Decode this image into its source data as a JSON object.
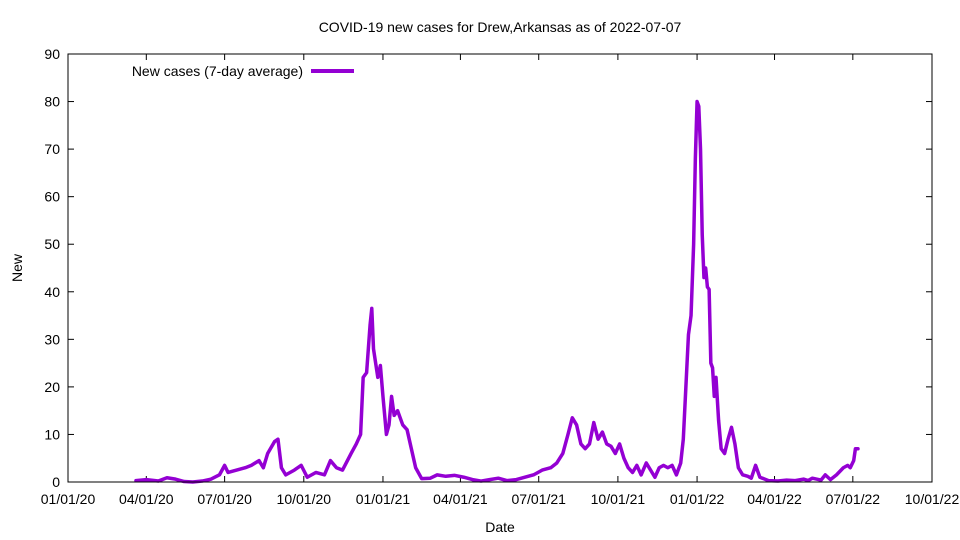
{
  "chart_data": {
    "type": "line",
    "title": "COVID-19 new cases for Drew,Arkansas as of 2022-07-07",
    "xlabel": "Date",
    "ylabel": "New",
    "xlim": [
      "2020-01-01",
      "2022-10-01"
    ],
    "ylim": [
      0,
      90
    ],
    "y_ticks": [
      0,
      10,
      20,
      30,
      40,
      50,
      60,
      70,
      80,
      90
    ],
    "x_ticks": [
      {
        "date": "2020-01-01",
        "label": "01/01/20"
      },
      {
        "date": "2020-04-01",
        "label": "04/01/20"
      },
      {
        "date": "2020-07-01",
        "label": "07/01/20"
      },
      {
        "date": "2020-10-01",
        "label": "10/01/20"
      },
      {
        "date": "2021-01-01",
        "label": "01/01/21"
      },
      {
        "date": "2021-04-01",
        "label": "04/01/21"
      },
      {
        "date": "2021-07-01",
        "label": "07/01/21"
      },
      {
        "date": "2021-10-01",
        "label": "10/01/21"
      },
      {
        "date": "2022-01-01",
        "label": "01/01/22"
      },
      {
        "date": "2022-04-01",
        "label": "04/01/22"
      },
      {
        "date": "2022-07-01",
        "label": "07/01/22"
      },
      {
        "date": "2022-10-01",
        "label": "10/01/22"
      }
    ],
    "grid": false,
    "legend_position": "top-left",
    "series": [
      {
        "name": "New cases (7-day average)",
        "color": "#9400d3",
        "points": [
          [
            "2020-03-20",
            0.3
          ],
          [
            "2020-04-01",
            0.5
          ],
          [
            "2020-04-15",
            0.2
          ],
          [
            "2020-04-25",
            0.9
          ],
          [
            "2020-05-05",
            0.6
          ],
          [
            "2020-05-15",
            0.1
          ],
          [
            "2020-05-25",
            0.0
          ],
          [
            "2020-06-05",
            0.2
          ],
          [
            "2020-06-15",
            0.6
          ],
          [
            "2020-06-25",
            1.5
          ],
          [
            "2020-07-01",
            3.5
          ],
          [
            "2020-07-05",
            2.0
          ],
          [
            "2020-07-15",
            2.5
          ],
          [
            "2020-07-25",
            3.0
          ],
          [
            "2020-08-01",
            3.5
          ],
          [
            "2020-08-10",
            4.5
          ],
          [
            "2020-08-15",
            3.0
          ],
          [
            "2020-08-20",
            6.0
          ],
          [
            "2020-08-28",
            8.5
          ],
          [
            "2020-09-01",
            9.0
          ],
          [
            "2020-09-05",
            3.0
          ],
          [
            "2020-09-10",
            1.5
          ],
          [
            "2020-09-20",
            2.5
          ],
          [
            "2020-09-28",
            3.5
          ],
          [
            "2020-10-05",
            1.0
          ],
          [
            "2020-10-15",
            2.0
          ],
          [
            "2020-10-25",
            1.5
          ],
          [
            "2020-11-01",
            4.5
          ],
          [
            "2020-11-08",
            3.0
          ],
          [
            "2020-11-15",
            2.5
          ],
          [
            "2020-11-25",
            6.0
          ],
          [
            "2020-12-01",
            8.0
          ],
          [
            "2020-12-06",
            10.0
          ],
          [
            "2020-12-09",
            22.0
          ],
          [
            "2020-12-13",
            23.0
          ],
          [
            "2020-12-17",
            33.0
          ],
          [
            "2020-12-19",
            36.5
          ],
          [
            "2020-12-21",
            28.0
          ],
          [
            "2020-12-26",
            22.0
          ],
          [
            "2020-12-29",
            24.5
          ],
          [
            "2021-01-01",
            18.0
          ],
          [
            "2021-01-05",
            10.0
          ],
          [
            "2021-01-08",
            12.0
          ],
          [
            "2021-01-11",
            18.0
          ],
          [
            "2021-01-14",
            14.0
          ],
          [
            "2021-01-18",
            15.0
          ],
          [
            "2021-01-24",
            12.0
          ],
          [
            "2021-01-29",
            11.0
          ],
          [
            "2021-02-03",
            7.0
          ],
          [
            "2021-02-08",
            3.0
          ],
          [
            "2021-02-15",
            0.7
          ],
          [
            "2021-02-25",
            0.8
          ],
          [
            "2021-03-05",
            1.5
          ],
          [
            "2021-03-15",
            1.2
          ],
          [
            "2021-03-25",
            1.4
          ],
          [
            "2021-04-05",
            1.0
          ],
          [
            "2021-04-15",
            0.5
          ],
          [
            "2021-04-25",
            0.2
          ],
          [
            "2021-05-05",
            0.5
          ],
          [
            "2021-05-15",
            0.8
          ],
          [
            "2021-05-25",
            0.3
          ],
          [
            "2021-06-05",
            0.5
          ],
          [
            "2021-06-15",
            1.0
          ],
          [
            "2021-06-25",
            1.5
          ],
          [
            "2021-07-05",
            2.5
          ],
          [
            "2021-07-15",
            3.0
          ],
          [
            "2021-07-22",
            4.0
          ],
          [
            "2021-07-29",
            6.0
          ],
          [
            "2021-08-04",
            10.0
          ],
          [
            "2021-08-09",
            13.5
          ],
          [
            "2021-08-14",
            12.0
          ],
          [
            "2021-08-19",
            8.0
          ],
          [
            "2021-08-24",
            7.0
          ],
          [
            "2021-08-29",
            8.0
          ],
          [
            "2021-09-03",
            12.5
          ],
          [
            "2021-09-08",
            9.0
          ],
          [
            "2021-09-13",
            10.5
          ],
          [
            "2021-09-18",
            8.0
          ],
          [
            "2021-09-23",
            7.5
          ],
          [
            "2021-09-28",
            6.0
          ],
          [
            "2021-10-03",
            8.0
          ],
          [
            "2021-10-08",
            5.0
          ],
          [
            "2021-10-13",
            3.0
          ],
          [
            "2021-10-18",
            2.0
          ],
          [
            "2021-10-23",
            3.5
          ],
          [
            "2021-10-28",
            1.5
          ],
          [
            "2021-11-03",
            4.0
          ],
          [
            "2021-11-08",
            2.5
          ],
          [
            "2021-11-13",
            1.0
          ],
          [
            "2021-11-18",
            3.0
          ],
          [
            "2021-11-23",
            3.5
          ],
          [
            "2021-11-28",
            3.0
          ],
          [
            "2021-12-03",
            3.5
          ],
          [
            "2021-12-08",
            1.5
          ],
          [
            "2021-12-13",
            4.0
          ],
          [
            "2021-12-16",
            9.0
          ],
          [
            "2021-12-19",
            20.0
          ],
          [
            "2021-12-22",
            31.0
          ],
          [
            "2021-12-25",
            35.0
          ],
          [
            "2021-12-28",
            50.0
          ],
          [
            "2021-12-30",
            68.0
          ],
          [
            "2022-01-01",
            80.0
          ],
          [
            "2022-01-03",
            79.0
          ],
          [
            "2022-01-05",
            70.0
          ],
          [
            "2022-01-07",
            52.0
          ],
          [
            "2022-01-09",
            43.0
          ],
          [
            "2022-01-11",
            45.0
          ],
          [
            "2022-01-13",
            41.0
          ],
          [
            "2022-01-15",
            40.5
          ],
          [
            "2022-01-17",
            25.0
          ],
          [
            "2022-01-19",
            24.0
          ],
          [
            "2022-01-21",
            18.0
          ],
          [
            "2022-01-23",
            22.0
          ],
          [
            "2022-01-26",
            13.0
          ],
          [
            "2022-01-29",
            7.0
          ],
          [
            "2022-02-02",
            6.0
          ],
          [
            "2022-02-06",
            9.0
          ],
          [
            "2022-02-10",
            11.5
          ],
          [
            "2022-02-14",
            8.0
          ],
          [
            "2022-02-18",
            3.0
          ],
          [
            "2022-02-23",
            1.5
          ],
          [
            "2022-03-01",
            1.2
          ],
          [
            "2022-03-05",
            0.8
          ],
          [
            "2022-03-10",
            3.5
          ],
          [
            "2022-03-15",
            1.0
          ],
          [
            "2022-03-25",
            0.3
          ],
          [
            "2022-04-05",
            0.2
          ],
          [
            "2022-04-15",
            0.4
          ],
          [
            "2022-04-25",
            0.3
          ],
          [
            "2022-05-05",
            0.6
          ],
          [
            "2022-05-10",
            0.3
          ],
          [
            "2022-05-15",
            0.8
          ],
          [
            "2022-05-25",
            0.4
          ],
          [
            "2022-05-30",
            1.5
          ],
          [
            "2022-06-05",
            0.5
          ],
          [
            "2022-06-12",
            1.5
          ],
          [
            "2022-06-20",
            3.0
          ],
          [
            "2022-06-25",
            3.5
          ],
          [
            "2022-06-28",
            3.0
          ],
          [
            "2022-07-02",
            4.5
          ],
          [
            "2022-07-04",
            7.0
          ],
          [
            "2022-07-07",
            7.0
          ]
        ]
      }
    ]
  }
}
